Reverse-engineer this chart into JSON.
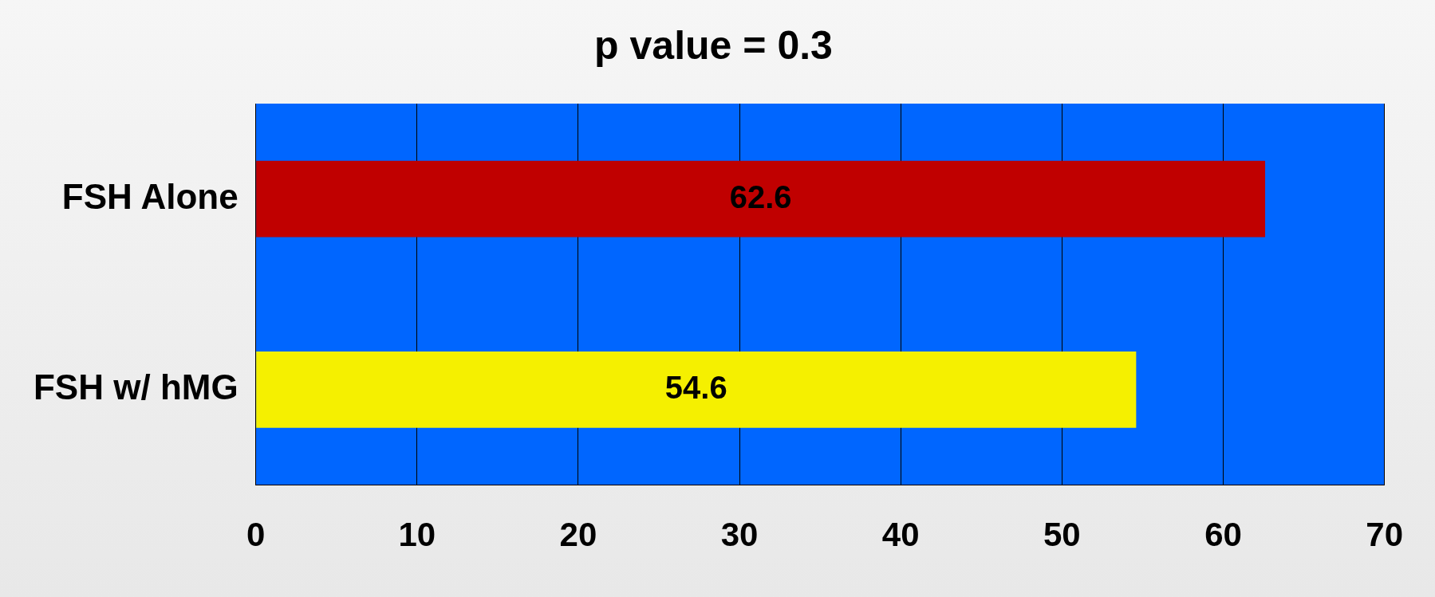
{
  "chart_data": {
    "type": "bar",
    "orientation": "horizontal",
    "title": "p value = 0.3",
    "categories": [
      "FSH Alone",
      "FSH w/ hMG"
    ],
    "values": [
      62.6,
      54.6
    ],
    "colors": [
      "#c00000",
      "#f5f000"
    ],
    "xlim": [
      0,
      70
    ],
    "xticks": [
      0,
      10,
      20,
      30,
      40,
      50,
      60,
      70
    ],
    "grid": "x",
    "data_labels": true,
    "legend": false
  }
}
